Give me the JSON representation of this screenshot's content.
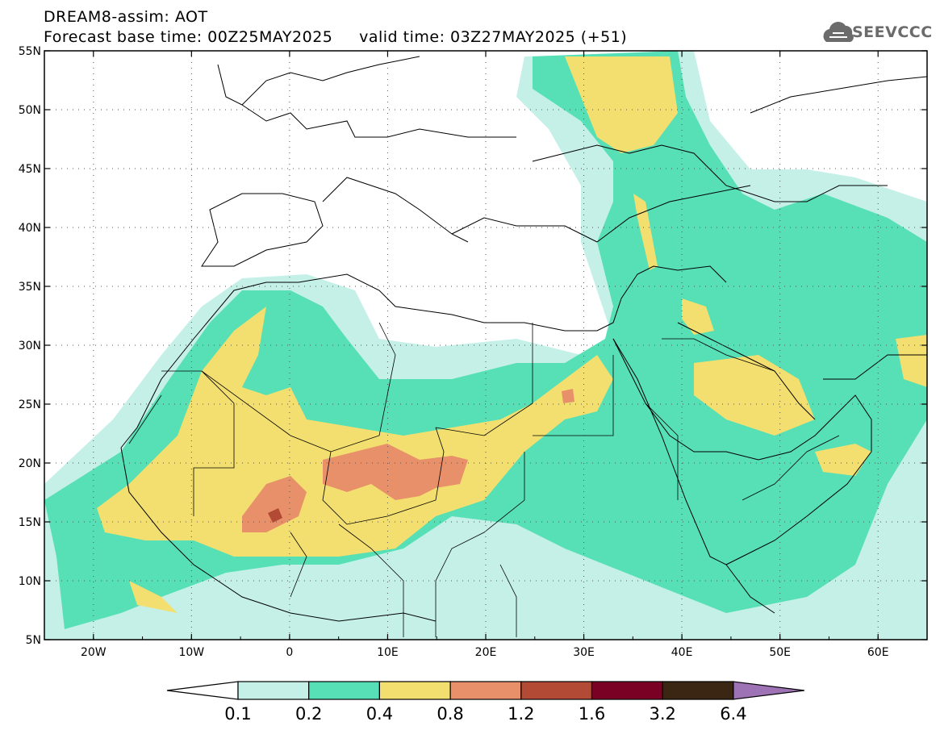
{
  "header": {
    "title": "DREAM8-assim: AOT",
    "base_time_label": "Forecast base time: 00Z25MAY2025",
    "valid_time_label": "valid time: 03Z27MAY2025 (+51)"
  },
  "logo": {
    "text": "SEEVCCC",
    "icon": "cloud-icon"
  },
  "map": {
    "projection": "latlon",
    "lon_range": [
      -25,
      65
    ],
    "lat_range": [
      5,
      55
    ],
    "lat_labels": [
      "55N",
      "50N",
      "45N",
      "40N",
      "35N",
      "30N",
      "25N",
      "20N",
      "15N",
      "10N",
      "5N"
    ],
    "lon_labels": [
      "20W",
      "10W",
      "0",
      "10E",
      "20E",
      "30E",
      "40E",
      "50E",
      "60E"
    ],
    "grid": "dotted"
  },
  "colorbar": {
    "labels": [
      "0.1",
      "0.2",
      "0.4",
      "0.8",
      "1.2",
      "1.6",
      "3.2",
      "6.4"
    ],
    "colors": [
      "#ffffff",
      "#c4f0e8",
      "#57dfb6",
      "#f3df6f",
      "#e8906a",
      "#b24a36",
      "#7a0024",
      "#3a2613",
      "#9e73b6"
    ]
  }
}
